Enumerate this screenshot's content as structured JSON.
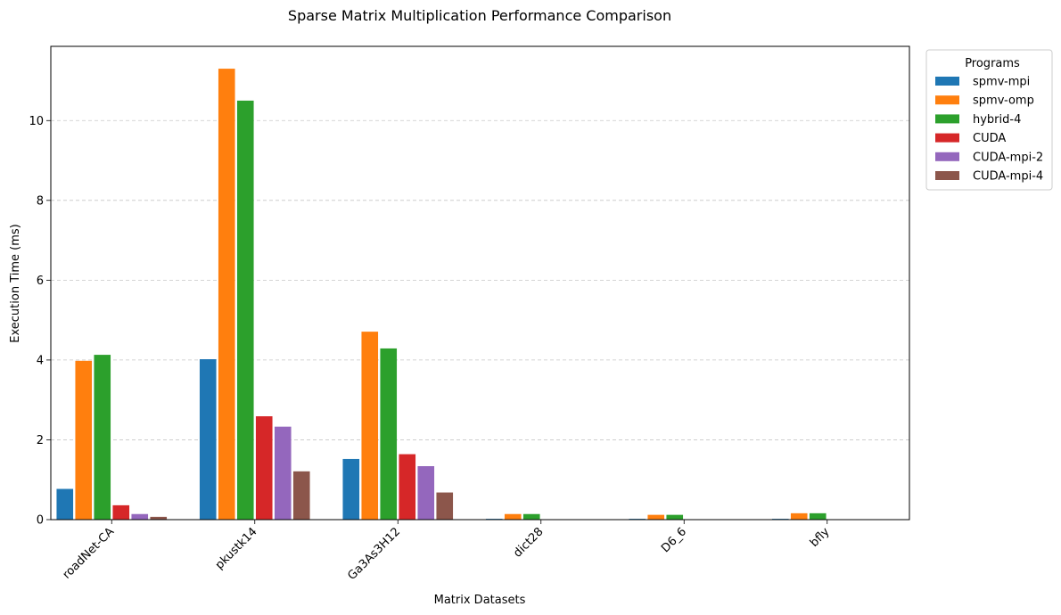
{
  "chart_data": {
    "type": "bar",
    "title": "Sparse Matrix Multiplication Performance Comparison",
    "xlabel": "Matrix Datasets",
    "ylabel": "Execution Time (ms)",
    "categories": [
      "roadNet-CA",
      "pkustk14",
      "Ga3As3H12",
      "dict28",
      "D6_6",
      "bfly"
    ],
    "ylim": [
      0,
      11.86
    ],
    "yticks": [
      0,
      2,
      4,
      6,
      8,
      10
    ],
    "grid": "y-dashed",
    "legend_title": "Programs",
    "legend_position": "outside-top-right",
    "series": [
      {
        "name": "spmv-mpi",
        "color": "#1f77b4",
        "values": [
          0.77,
          4.02,
          1.52,
          0.02,
          0.02,
          0.02
        ]
      },
      {
        "name": "spmv-omp",
        "color": "#ff7f0e",
        "values": [
          3.98,
          11.3,
          4.71,
          0.14,
          0.12,
          0.16
        ]
      },
      {
        "name": "hybrid-4",
        "color": "#2ca02c",
        "values": [
          4.13,
          10.5,
          4.29,
          0.14,
          0.12,
          0.16
        ]
      },
      {
        "name": "CUDA",
        "color": "#d62728",
        "values": [
          0.36,
          2.59,
          1.64,
          0.0,
          0.0,
          0.0
        ]
      },
      {
        "name": "CUDA-mpi-2",
        "color": "#9467bd",
        "values": [
          0.14,
          2.33,
          1.34,
          0.0,
          0.0,
          0.0
        ]
      },
      {
        "name": "CUDA-mpi-4",
        "color": "#8c564b",
        "values": [
          0.07,
          1.21,
          0.68,
          0.0,
          0.0,
          0.0
        ]
      }
    ]
  }
}
